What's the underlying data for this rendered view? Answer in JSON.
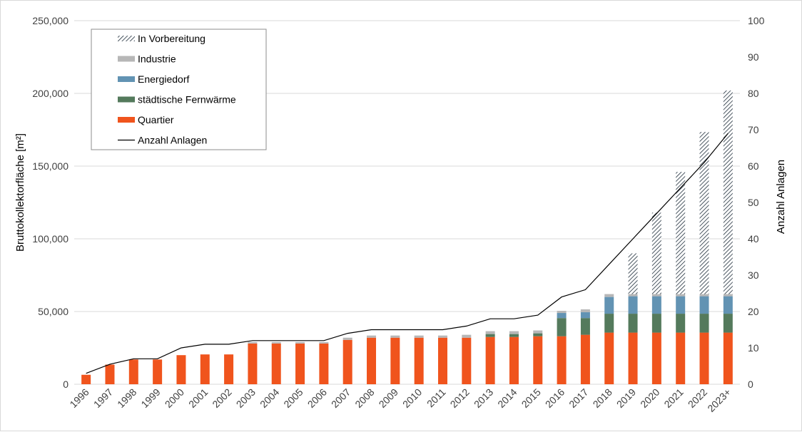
{
  "colors": {
    "quartier": "#f0541d",
    "fernwaerme": "#547a5c",
    "energiedorf": "#6293b3",
    "industrie": "#b7b7b7",
    "vorbereitung_pattern": "#1e2d3a",
    "line": "#000000",
    "grid": "#d9d9d9"
  },
  "chart_data": {
    "type": "bar",
    "title": "",
    "xlabel": "",
    "ylabel": "Bruttokollektorfläche  [m²]",
    "y2label": "Anzahl Anlagen",
    "ylim": [
      0,
      250000
    ],
    "y2lim": [
      0,
      100
    ],
    "yticks": [
      "0",
      "50,000",
      "100,000",
      "150,000",
      "200,000",
      "250,000"
    ],
    "y2ticks": [
      "0",
      "10",
      "20",
      "30",
      "40",
      "50",
      "60",
      "70",
      "80",
      "90",
      "100"
    ],
    "grid": "horizontal",
    "legend_position": "top-left",
    "categories": [
      "1996",
      "1997",
      "1998",
      "1999",
      "2000",
      "2001",
      "2002",
      "2003",
      "2004",
      "2005",
      "2006",
      "2007",
      "2008",
      "2009",
      "2010",
      "2011",
      "2012",
      "2013",
      "2014",
      "2015",
      "2016",
      "2017",
      "2018",
      "2019",
      "2020",
      "2021",
      "2022",
      "2023+"
    ],
    "series": [
      {
        "name": "Quartier",
        "type": "bar",
        "color_key": "quartier",
        "values": [
          6500,
          13500,
          17000,
          17000,
          20000,
          20500,
          20500,
          28000,
          28000,
          28000,
          28000,
          30500,
          32000,
          32000,
          32000,
          32000,
          32000,
          32500,
          32500,
          33000,
          33000,
          34000,
          35500,
          35500,
          35500,
          35500,
          35500,
          35500
        ]
      },
      {
        "name": "städtische Fernwärme",
        "type": "bar",
        "color_key": "fernwaerme",
        "values": [
          0,
          0,
          0,
          0,
          0,
          0,
          0,
          0,
          0,
          0,
          0,
          0,
          0,
          0,
          0,
          0,
          0,
          2000,
          2000,
          2000,
          12500,
          11500,
          13000,
          13000,
          13000,
          13000,
          13000,
          13000
        ]
      },
      {
        "name": "Energiedorf",
        "type": "bar",
        "color_key": "energiedorf",
        "values": [
          0,
          0,
          0,
          0,
          0,
          0,
          0,
          0,
          0,
          0,
          0,
          0,
          0,
          0,
          0,
          0,
          0,
          0,
          0,
          0,
          3500,
          4000,
          11500,
          12000,
          12000,
          12000,
          12000,
          12000
        ]
      },
      {
        "name": "Industrie",
        "type": "bar",
        "color_key": "industrie",
        "values": [
          0,
          0,
          0,
          0,
          0,
          0,
          0,
          1000,
          1000,
          1000,
          1000,
          1500,
          1500,
          1500,
          1500,
          1500,
          2000,
          2000,
          2000,
          2000,
          1500,
          2000,
          2000,
          1500,
          1500,
          1500,
          1500,
          1500
        ]
      },
      {
        "name": "In Vorbereitung",
        "type": "bar",
        "color_key": "vorbereitung_pattern",
        "values": [
          0,
          0,
          0,
          0,
          0,
          0,
          0,
          0,
          0,
          0,
          0,
          0,
          0,
          0,
          0,
          0,
          0,
          0,
          0,
          0,
          0,
          0,
          0,
          28000,
          56000,
          84000,
          111500,
          140000
        ]
      },
      {
        "name": "Anzahl Anlagen",
        "type": "line",
        "axis": "right",
        "color_key": "line",
        "values": [
          3,
          5.5,
          7,
          7,
          10,
          11,
          11,
          12,
          12,
          12,
          12,
          14,
          15,
          15,
          15,
          15,
          16,
          18,
          18,
          19,
          24,
          26,
          33,
          40,
          47,
          54,
          61,
          69
        ]
      }
    ]
  }
}
